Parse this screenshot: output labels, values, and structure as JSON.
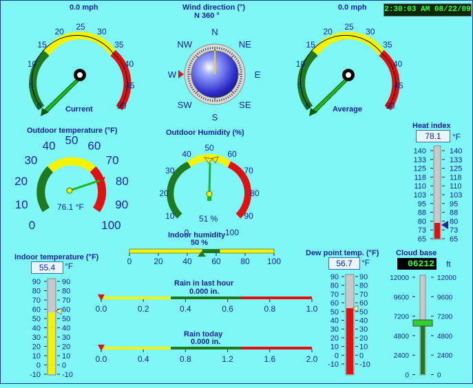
{
  "datetime": "2:30:03 AM 08/22/09",
  "wind_speed_current": {
    "value_text": "0.0 mph",
    "label": "Current",
    "ticks": [
      "0",
      "5",
      "10",
      "15",
      "20",
      "25",
      "30",
      "35",
      "40",
      "45",
      "50"
    ],
    "value": 0
  },
  "wind_speed_average": {
    "value_text": "0.0 mph",
    "label": "Average",
    "ticks": [
      "0",
      "5",
      "10",
      "15",
      "20",
      "25",
      "30",
      "35",
      "40",
      "45",
      "50"
    ],
    "value": 0
  },
  "wind_direction": {
    "title": "Wind direction (°)",
    "value_text": "N  360 °",
    "points": [
      "N",
      "NE",
      "E",
      "SE",
      "S",
      "SW",
      "W",
      "NW"
    ],
    "degrees": 360
  },
  "outdoor_temperature": {
    "title": "Outdoor temperature (°F)",
    "value_text": "76.1 °F",
    "ticks": [
      "0",
      "10",
      "20",
      "30",
      "40",
      "50",
      "60",
      "70",
      "80",
      "90",
      "100"
    ],
    "value": 76.1
  },
  "outdoor_humidity": {
    "title": "Outdoor Humidity (%)",
    "value_text": "51 %",
    "ticks": [
      "0",
      "10",
      "20",
      "30",
      "40",
      "50",
      "60",
      "70",
      "80",
      "90",
      "100"
    ],
    "value": 51
  },
  "indoor_humidity": {
    "title": "Indoor humidity",
    "value_text": "50 %",
    "ticks": [
      "0",
      "20",
      "40",
      "60",
      "80",
      "100"
    ],
    "value": 50
  },
  "heat_index": {
    "title": "Heat index",
    "value": "78.1",
    "unit": "°F",
    "ticks": [
      "140",
      "133",
      "125",
      "118",
      "110",
      "103",
      "95",
      "88",
      "80",
      "73",
      "65"
    ],
    "fill_fraction": 0.17
  },
  "indoor_temperature": {
    "title": "Indoor temperature (°F)",
    "value": "55.4",
    "unit": "°F",
    "ticks": [
      "90",
      "80",
      "70",
      "60",
      "50",
      "40",
      "30",
      "20",
      "10",
      "0",
      "-10"
    ],
    "fill_fraction": 0.654
  },
  "dew_point": {
    "title": "Dew point temp. (°F)",
    "value": "56.7",
    "unit": "°F",
    "ticks": [
      "90",
      "80",
      "70",
      "60",
      "50",
      "40",
      "30",
      "20",
      "10",
      "0",
      "-10"
    ],
    "fill_fraction": 0.667
  },
  "rain_last_hour": {
    "title": "Rain in last hour",
    "value_text": "0.000 in.",
    "ticks": [
      "0.0",
      "0.2",
      "0.4",
      "0.6",
      "0.8",
      "1.0"
    ],
    "value": 0
  },
  "rain_today": {
    "title": "Rain today",
    "value_text": "0.000 in.",
    "ticks": [
      "0.0",
      "0.4",
      "0.8",
      "1.2",
      "1.6",
      "2.0"
    ],
    "value": 0
  },
  "cloud_base": {
    "title": "Cloud base",
    "value": "06212",
    "unit": "ft",
    "ticks": [
      "12000",
      "9600",
      "7200",
      "4800",
      "2400",
      "0"
    ],
    "fill_fraction": 0.518
  },
  "colors": {
    "background": "#80f7f7",
    "label": "#0a1fa0",
    "green": "#1f7a1f",
    "yellow": "#f4f400",
    "red": "#e01010",
    "needle": "#22c022"
  }
}
